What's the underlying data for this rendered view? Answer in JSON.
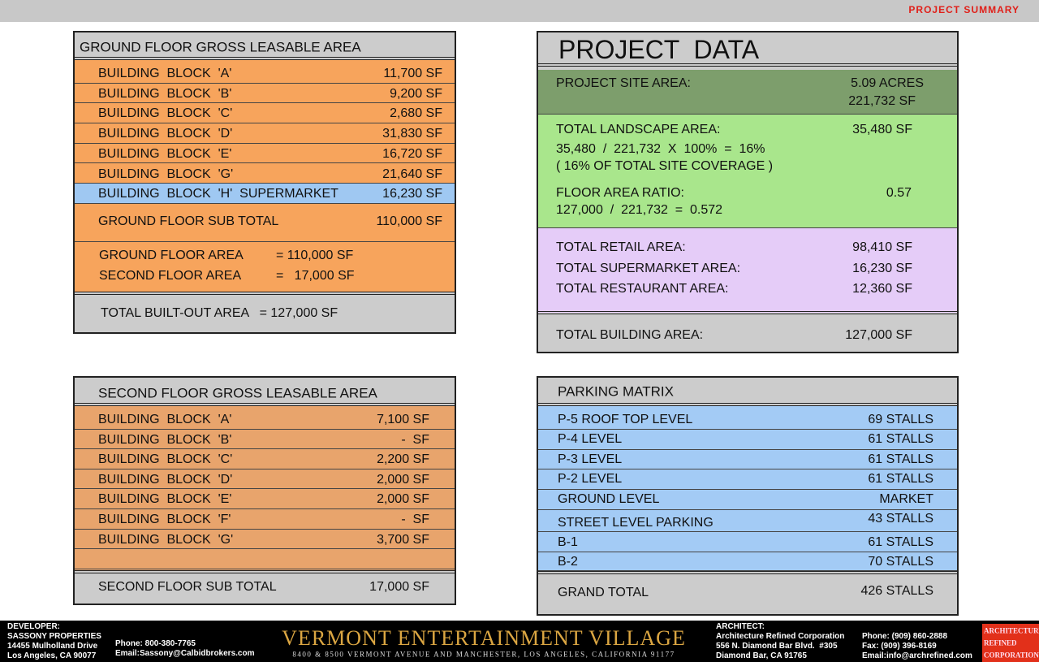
{
  "header": {
    "title": "PROJECT SUMMARY"
  },
  "ground_floor": {
    "title": "GROUND FLOOR GROSS LEASABLE AREA",
    "rows": [
      [
        "BUILDING  BLOCK  'A'",
        "11,700 SF"
      ],
      [
        "BUILDING  BLOCK  'B'",
        "9,200 SF"
      ],
      [
        "BUILDING  BLOCK  'C'",
        "2,680 SF"
      ],
      [
        "BUILDING  BLOCK  'D'",
        "31,830 SF"
      ],
      [
        "BUILDING  BLOCK  'E'",
        "16,720 SF"
      ],
      [
        "BUILDING  BLOCK  'G'",
        "21,640 SF"
      ],
      [
        "BUILDING  BLOCK  'H'  SUPERMARKET",
        "16,230 SF"
      ]
    ],
    "subtotal": [
      "GROUND FLOOR SUB TOTAL",
      "110,000 SF"
    ],
    "areas": [
      [
        "GROUND FLOOR AREA",
        "= 110,000 SF"
      ],
      [
        "SECOND FLOOR AREA",
        "=   17,000 SF"
      ]
    ],
    "total": "TOTAL BUILT-OUT AREA   = 127,000 SF"
  },
  "second_floor": {
    "title": "SECOND FLOOR GROSS LEASABLE AREA",
    "rows": [
      [
        "BUILDING  BLOCK  'A'",
        "7,100 SF"
      ],
      [
        "BUILDING  BLOCK  'B'",
        "-  SF"
      ],
      [
        "BUILDING  BLOCK  'C'",
        "2,200 SF"
      ],
      [
        "BUILDING  BLOCK  'D'",
        "2,000 SF"
      ],
      [
        "BUILDING  BLOCK  'E'",
        "2,000 SF"
      ],
      [
        "BUILDING  BLOCK  'F'",
        "-  SF"
      ],
      [
        "BUILDING  BLOCK  'G'",
        "3,700 SF"
      ]
    ],
    "subtotal": [
      "SECOND FLOOR SUB TOTAL",
      "17,000 SF"
    ]
  },
  "project_data": {
    "title": "PROJECT  DATA",
    "site_area": {
      "label": "PROJECT SITE AREA:",
      "values": [
        "5.09 ACRES",
        "221,732 SF"
      ]
    },
    "landscape": {
      "label": "TOTAL LANDSCAPE AREA:",
      "value": "35,480 SF",
      "formula": "35,480  /  221,732  X  100%  =  16%",
      "note": "( 16% OF TOTAL SITE COVERAGE )"
    },
    "far": {
      "label": "FLOOR AREA RATIO:",
      "value": "0.57",
      "formula": "127,000  /  221,732  =  0.572"
    },
    "areas": [
      [
        "TOTAL RETAIL AREA:",
        "98,410 SF"
      ],
      [
        "TOTAL SUPERMARKET AREA:",
        "16,230 SF"
      ],
      [
        "TOTAL RESTAURANT AREA:",
        "12,360 SF"
      ]
    ],
    "total": [
      "TOTAL BUILDING AREA:",
      "127,000 SF"
    ]
  },
  "parking": {
    "title": "PARKING MATRIX",
    "rows": [
      [
        "P-5 ROOF TOP LEVEL",
        "69 STALLS"
      ],
      [
        "P-4 LEVEL",
        "61 STALLS"
      ],
      [
        "P-3 LEVEL",
        "61 STALLS"
      ],
      [
        "P-2 LEVEL",
        "61 STALLS"
      ],
      [
        "GROUND LEVEL",
        "MARKET"
      ],
      [
        "STREET LEVEL PARKING",
        "43 STALLS"
      ],
      [
        "B-1",
        "61 STALLS"
      ],
      [
        "B-2",
        "70 STALLS"
      ]
    ],
    "total": [
      "GRAND TOTAL",
      "426 STALLS"
    ]
  },
  "footer": {
    "developer": [
      "DEVELOPER:",
      "SASSONY PROPERTIES",
      "14455 Mulholland Drive",
      "Los Angeles, CA 90077"
    ],
    "developer_contact": [
      "Phone: 800-380-7765",
      "Email:Sassony@Calbidbrokers.com"
    ],
    "project_name": "VERMONT ENTERTAINMENT VILLAGE",
    "address": "8400 & 8500 VERMONT AVENUE AND MANCHESTER, LOS ANGELES, CALIFORNIA 91177",
    "architect": [
      "ARCHITECT:",
      "Architecture Refined Corporation",
      "556 N. Diamond Bar Blvd.  #305",
      "Diamond Bar, CA 91765"
    ],
    "architect_contact": [
      "Phone: (909) 860-2888",
      "Fax: (909) 396-8169",
      "Email:info@archrefined.com"
    ],
    "logo": [
      "ARCHITECTURE",
      "REFINED",
      "CORPORATION"
    ]
  }
}
